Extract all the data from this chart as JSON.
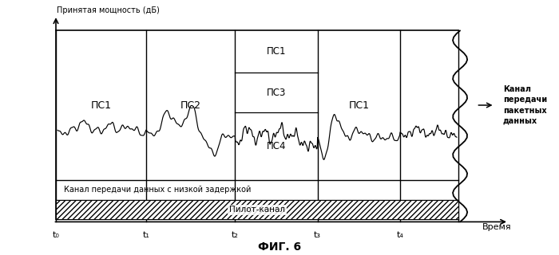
{
  "title_y": "Принятая мощность (дБ)",
  "title_x": "Время",
  "fig_caption": "ФИГ. 6",
  "right_label": "Канал\nпередачи\nпакетных\nданных",
  "low_delay_label": "Канал передачи данных с низкой задержкой",
  "pilot_label": "Пилот-канал",
  "t_labels": [
    "t₀",
    "t₁",
    "t₂",
    "t₃",
    "t₄"
  ],
  "bg_color": "#ffffff",
  "ps1_1_label": "ПС1",
  "ps2_label": "ПС2",
  "ps1_2_label": "ПС1",
  "ps3_label": "ПС3",
  "ps4_label": "ПС4",
  "ps1_3_label": "ПС1"
}
